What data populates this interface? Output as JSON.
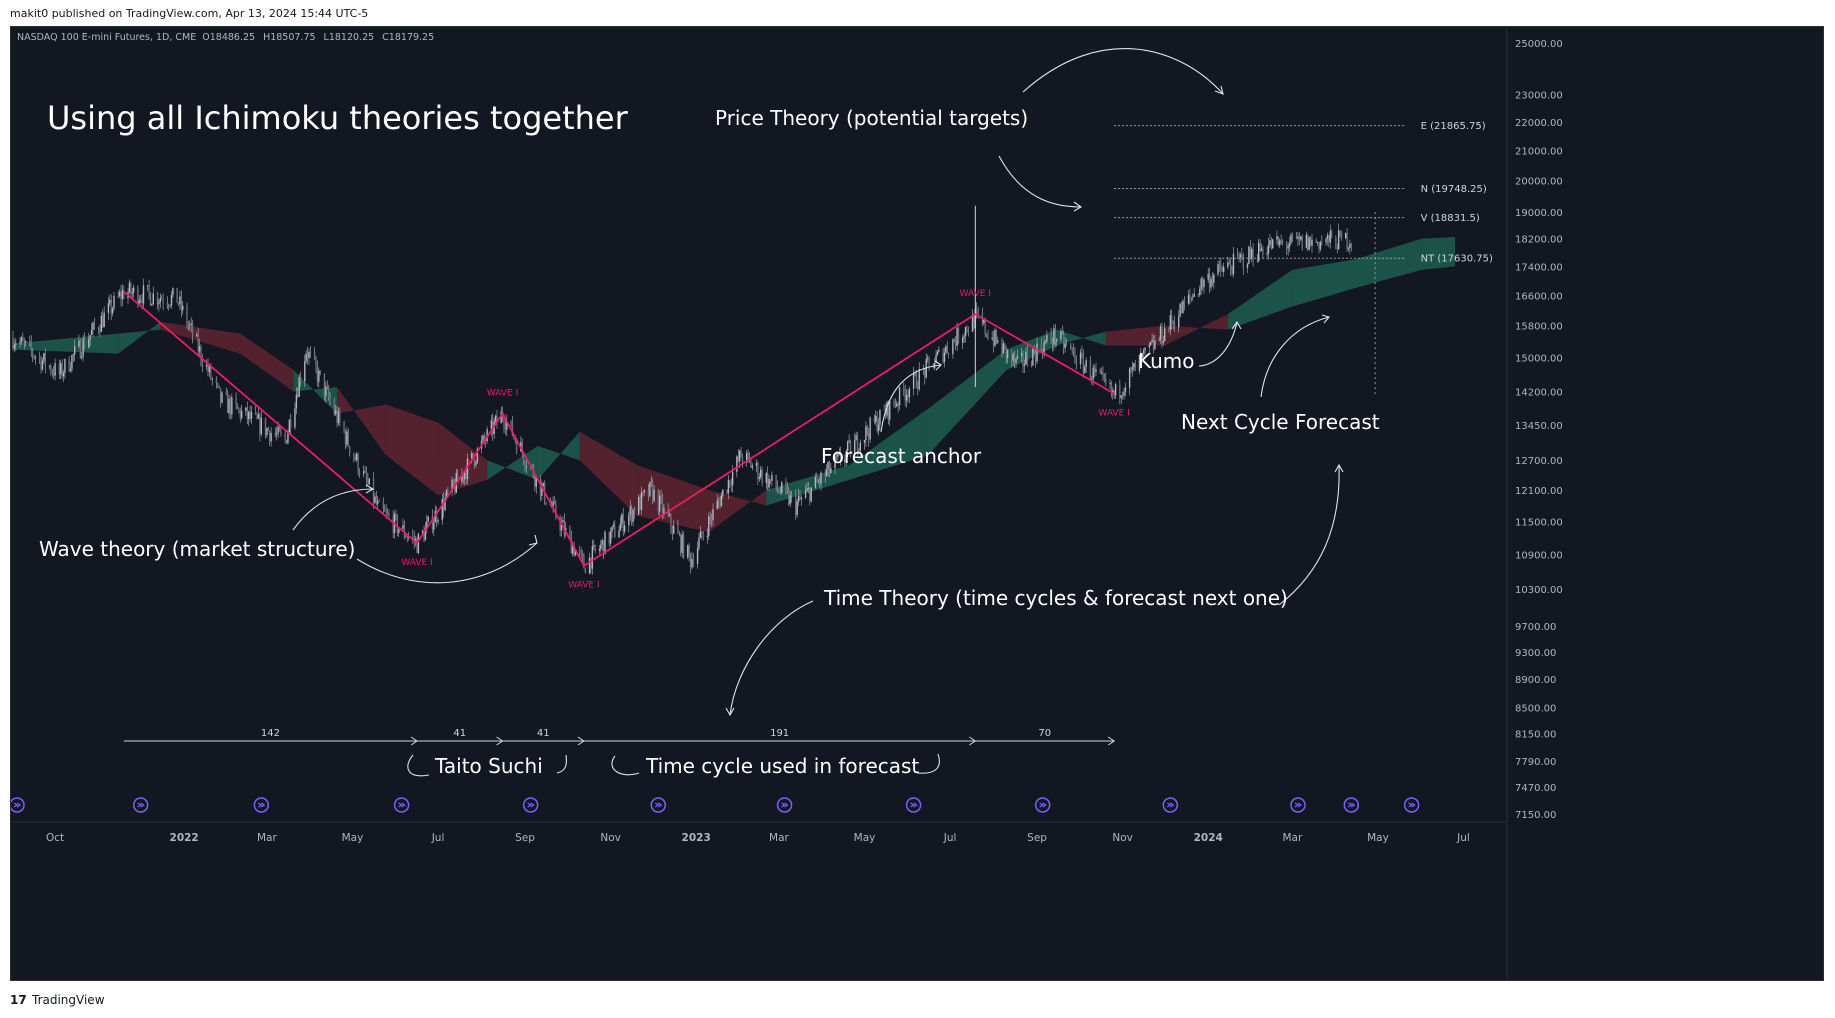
{
  "page": {
    "publisher_line": "makit0 published on TradingView.com, Apr 13, 2024 15:44 UTC-5",
    "footer_brand": "TradingView",
    "footer_logo": "17"
  },
  "colors": {
    "background": "#131722",
    "candle": "#b2b5be",
    "wave": "#e91e63",
    "kumo_bull": "#1e5a4c",
    "kumo_bear": "#5c2330",
    "text": "#ffffff",
    "axis_text": "#b2b5be",
    "event_icon": "#7b61ff"
  },
  "chart_data": {
    "type": "candlestick",
    "symbol_line": {
      "name": "NASDAQ 100 E-mini Futures, 1D, CME",
      "open": "O18486.25",
      "high": "H18507.75",
      "low": "L18120.25",
      "close": "C18179.25"
    },
    "title": "Using all Ichimoku theories together",
    "y_scale": "log",
    "ylim": [
      7000,
      25500
    ],
    "y_ticks": [
      "25000.00",
      "23000.00",
      "22000.00",
      "21000.00",
      "20000.00",
      "19000.00",
      "18200.00",
      "17400.00",
      "16600.00",
      "15800.00",
      "15000.00",
      "14200.00",
      "13450.00",
      "12700.00",
      "12100.00",
      "11500.00",
      "10900.00",
      "10300.00",
      "9700.00",
      "9300.00",
      "8900.00",
      "8500.00",
      "8150.00",
      "7790.00",
      "7470.00",
      "7150.00"
    ],
    "x_range": [
      "2021-09-01",
      "2024-08-01"
    ],
    "x_ticks": [
      {
        "label": "Oct",
        "date": "2021-10-01",
        "bold": false
      },
      {
        "label": "2022",
        "date": "2022-01-01",
        "bold": true
      },
      {
        "label": "Mar",
        "date": "2022-03-01",
        "bold": false
      },
      {
        "label": "May",
        "date": "2022-05-01",
        "bold": false
      },
      {
        "label": "Jul",
        "date": "2022-07-01",
        "bold": false
      },
      {
        "label": "Sep",
        "date": "2022-09-01",
        "bold": false
      },
      {
        "label": "Nov",
        "date": "2022-11-01",
        "bold": false
      },
      {
        "label": "2023",
        "date": "2023-01-01",
        "bold": true
      },
      {
        "label": "Mar",
        "date": "2023-03-01",
        "bold": false
      },
      {
        "label": "May",
        "date": "2023-05-01",
        "bold": false
      },
      {
        "label": "Jul",
        "date": "2023-07-01",
        "bold": false
      },
      {
        "label": "Sep",
        "date": "2023-09-01",
        "bold": false
      },
      {
        "label": "Nov",
        "date": "2023-11-01",
        "bold": false
      },
      {
        "label": "2024",
        "date": "2024-01-01",
        "bold": true
      },
      {
        "label": "Mar",
        "date": "2024-03-01",
        "bold": false
      },
      {
        "label": "May",
        "date": "2024-05-01",
        "bold": false
      },
      {
        "label": "Jul",
        "date": "2024-07-01",
        "bold": false
      }
    ],
    "price_path": [
      [
        "2021-09-01",
        15500
      ],
      [
        "2021-10-04",
        14600
      ],
      [
        "2021-11-19",
        16700
      ],
      [
        "2021-12-27",
        16500
      ],
      [
        "2022-01-27",
        14000
      ],
      [
        "2022-03-14",
        13100
      ],
      [
        "2022-03-29",
        15200
      ],
      [
        "2022-05-20",
        11700
      ],
      [
        "2022-06-16",
        11100
      ],
      [
        "2022-08-16",
        13700
      ],
      [
        "2022-09-15",
        12000
      ],
      [
        "2022-10-13",
        10700
      ],
      [
        "2022-11-30",
        12100
      ],
      [
        "2022-12-28",
        10800
      ],
      [
        "2023-02-02",
        12800
      ],
      [
        "2023-03-13",
        11800
      ],
      [
        "2023-05-01",
        13250
      ],
      [
        "2023-07-19",
        16000
      ],
      [
        "2023-08-18",
        14800
      ],
      [
        "2023-09-14",
        15550
      ],
      [
        "2023-10-26",
        14100
      ],
      [
        "2023-12-29",
        17000
      ],
      [
        "2024-02-12",
        18000
      ],
      [
        "2024-04-12",
        18179
      ]
    ],
    "kumo": [
      [
        "2021-09-01",
        15350,
        15200
      ],
      [
        "2021-11-15",
        15600,
        15100
      ],
      [
        "2021-12-15",
        15700,
        15900
      ],
      [
        "2022-02-10",
        15100,
        15600
      ],
      [
        "2022-03-20",
        14200,
        14700
      ],
      [
        "2022-04-20",
        14300,
        13700
      ],
      [
        "2022-05-25",
        12800,
        13900
      ],
      [
        "2022-07-01",
        12000,
        13500
      ],
      [
        "2022-08-05",
        12300,
        12700
      ],
      [
        "2022-09-10",
        13000,
        12300
      ],
      [
        "2022-10-10",
        12700,
        13300
      ],
      [
        "2022-11-20",
        11600,
        12600
      ],
      [
        "2023-01-10",
        11300,
        12100
      ],
      [
        "2023-02-20",
        12100,
        11800
      ],
      [
        "2023-04-20",
        12600,
        12300
      ],
      [
        "2023-06-15",
        13800,
        12800
      ],
      [
        "2023-08-10",
        15200,
        14700
      ],
      [
        "2023-09-15",
        15700,
        15300
      ],
      [
        "2023-10-20",
        15300,
        15650
      ],
      [
        "2023-12-01",
        15300,
        15800
      ],
      [
        "2024-01-15",
        16100,
        15700
      ],
      [
        "2024-03-01",
        17300,
        16300
      ],
      [
        "2024-04-15",
        17600,
        16800
      ],
      [
        "2024-06-01",
        18200,
        17300
      ],
      [
        "2024-06-25",
        18250,
        17400
      ]
    ],
    "wave_lines": [
      {
        "points": [
          [
            "2021-11-19",
            16700
          ],
          [
            "2022-06-16",
            11100
          ],
          [
            "2022-08-16",
            13700
          ],
          [
            "2022-10-13",
            10700
          ],
          [
            "2023-07-19",
            16100
          ],
          [
            "2023-10-26",
            14150
          ]
        ]
      }
    ],
    "wave_labels": [
      {
        "text": "WAVE I",
        "date": "2022-06-16",
        "value": 11100,
        "pos": "below"
      },
      {
        "text": "WAVE I",
        "date": "2022-08-16",
        "value": 13700,
        "pos": "above"
      },
      {
        "text": "WAVE I",
        "date": "2022-10-13",
        "value": 10700,
        "pos": "below"
      },
      {
        "text": "WAVE I",
        "date": "2023-07-19",
        "value": 16100,
        "pos": "above"
      },
      {
        "text": "WAVE I",
        "date": "2023-10-26",
        "value": 14150,
        "pos": "below"
      }
    ],
    "price_targets": [
      {
        "label": "E (21865.75)",
        "value": 21865.75
      },
      {
        "label": "N (19748.25)",
        "value": 19748.25
      },
      {
        "label": "V (18831.5)",
        "value": 18831.5
      },
      {
        "label": "NT (17630.75)",
        "value": 17630.75
      }
    ],
    "time_cycles": [
      {
        "count": "142",
        "from": "2021-11-19",
        "to": "2022-06-16"
      },
      {
        "count": "41",
        "from": "2022-06-16",
        "to": "2022-08-16"
      },
      {
        "count": "41",
        "from": "2022-08-16",
        "to": "2022-10-13"
      },
      {
        "count": "191",
        "from": "2022-10-13",
        "to": "2023-07-19"
      },
      {
        "count": "70",
        "from": "2023-07-19",
        "to": "2023-10-26"
      }
    ],
    "forecast_line_date": "2024-04-29",
    "anchor_line_date": "2023-07-19",
    "annotations": {
      "price_theory": "Price Theory (potential targets)",
      "wave_theory": "Wave theory (market structure)",
      "forecast_anchor": "Forecast anchor",
      "kumo": "Kumo",
      "next_cycle": "Next Cycle Forecast",
      "time_theory": "Time Theory (time cycles & forecast next one)",
      "taito_suchi": "Taito Suchi",
      "time_cycle_used": "Time cycle used in forecast"
    },
    "event_icon_dates": [
      "2021-09-01",
      "2021-12-01",
      "2022-02-25",
      "2022-06-05",
      "2022-09-05",
      "2022-12-05",
      "2023-03-05",
      "2023-06-05",
      "2023-09-05",
      "2023-12-05",
      "2024-03-05",
      "2024-04-12",
      "2024-05-25"
    ]
  }
}
